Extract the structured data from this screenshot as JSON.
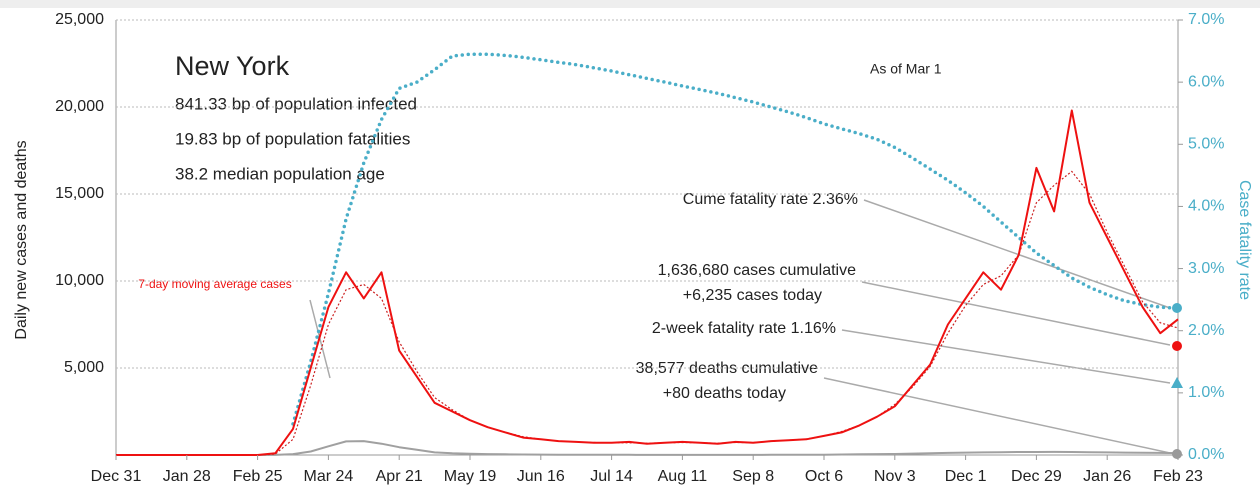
{
  "chart_data": {
    "type": "line",
    "title": "New York",
    "subtitle": [
      "841.33 bp of population infected",
      "19.83 bp of population fatalities",
      "38.2 median population age"
    ],
    "annotations": {
      "as_of": "As of Mar 1",
      "cume_rate": "Cume fatality rate 2.36%",
      "cases_cum": "1,636,680 cases cumulative",
      "cases_today": "+6,235 cases today",
      "two_week_rate": "2-week fatality rate 1.16%",
      "deaths_cum": "38,577 deaths cumulative",
      "deaths_today": "+80 deaths today",
      "avg_label": "7-day moving average cases"
    },
    "ylabel": "Daily new cases and deaths",
    "y2label": "Case fatality rate",
    "x": [
      0,
      7,
      14,
      21,
      28,
      35,
      42,
      49,
      56,
      63,
      70,
      77,
      84,
      91,
      98,
      105,
      112,
      119,
      126,
      133,
      140,
      147,
      154,
      161,
      168,
      175,
      182,
      189,
      196,
      203,
      210,
      217,
      224,
      231,
      238,
      245,
      252,
      259,
      266,
      273,
      280,
      287,
      294,
      301,
      308,
      315,
      322,
      329,
      336,
      343,
      350,
      357,
      364,
      371,
      378,
      385,
      392,
      399,
      406,
      413,
      420
    ],
    "xlim": [
      0,
      420
    ],
    "xticks": [
      {
        "value": 0,
        "label": "Dec 31"
      },
      {
        "value": 28,
        "label": "Jan 28"
      },
      {
        "value": 56,
        "label": "Feb 25"
      },
      {
        "value": 84,
        "label": "Mar 24"
      },
      {
        "value": 112,
        "label": "Apr 21"
      },
      {
        "value": 140,
        "label": "May 19"
      },
      {
        "value": 168,
        "label": "Jun 16"
      },
      {
        "value": 196,
        "label": "Jul 14"
      },
      {
        "value": 224,
        "label": "Aug 11"
      },
      {
        "value": 252,
        "label": "Sep 8"
      },
      {
        "value": 280,
        "label": "Oct 6"
      },
      {
        "value": 308,
        "label": "Nov 3"
      },
      {
        "value": 336,
        "label": "Dec 1"
      },
      {
        "value": 364,
        "label": "Dec 29"
      },
      {
        "value": 392,
        "label": "Jan 26"
      },
      {
        "value": 420,
        "label": "Feb 23"
      }
    ],
    "ylim": [
      0,
      25000
    ],
    "yticks": [
      {
        "value": 5000,
        "label": "5,000"
      },
      {
        "value": 10000,
        "label": "10,000"
      },
      {
        "value": 15000,
        "label": "15,000"
      },
      {
        "value": 20000,
        "label": "20,000"
      },
      {
        "value": 25000,
        "label": "25,000"
      }
    ],
    "y2lim": [
      0,
      7
    ],
    "y2ticks": [
      {
        "value": 0,
        "label": "0.0%"
      },
      {
        "value": 1,
        "label": "1.0%"
      },
      {
        "value": 2,
        "label": "2.0%"
      },
      {
        "value": 3,
        "label": "3.0%"
      },
      {
        "value": 4,
        "label": "4.0%"
      },
      {
        "value": 5,
        "label": "5.0%"
      },
      {
        "value": 6,
        "label": "6.0%"
      },
      {
        "value": 7,
        "label": "7.0%"
      }
    ],
    "grid": true,
    "series": [
      {
        "name": "Daily new cases",
        "color": "#ee1111",
        "style": "solid",
        "values": [
          0,
          0,
          0,
          0,
          0,
          0,
          0,
          0,
          0,
          100,
          1500,
          5000,
          8500,
          10500,
          9000,
          10500,
          6000,
          4500,
          3000,
          2500,
          2000,
          1600,
          1300,
          1000,
          900,
          800,
          750,
          700,
          700,
          750,
          650,
          700,
          750,
          700,
          650,
          750,
          700,
          800,
          850,
          900,
          1100,
          1300,
          1700,
          2200,
          2800,
          4000,
          5200,
          7500,
          9000,
          10500,
          9500,
          11500,
          16500,
          14000,
          19800,
          14500,
          12500,
          10500,
          8500,
          7000,
          7800
        ]
      },
      {
        "name": "7-day moving average cases",
        "color": "#cc2222",
        "style": "dotted",
        "values": [
          0,
          0,
          0,
          0,
          0,
          0,
          0,
          0,
          0,
          50,
          900,
          4000,
          7500,
          9500,
          9800,
          9000,
          6500,
          4800,
          3300,
          2600,
          2000,
          1600,
          1300,
          1050,
          900,
          800,
          750,
          720,
          700,
          700,
          680,
          700,
          720,
          700,
          680,
          720,
          720,
          780,
          850,
          920,
          1100,
          1350,
          1700,
          2200,
          2900,
          3900,
          5100,
          7000,
          8600,
          9800,
          10300,
          11500,
          14500,
          15500,
          16300,
          15000,
          12800,
          10800,
          8800,
          7600,
          7300
        ]
      },
      {
        "name": "Daily deaths",
        "color": "#a0a0a0",
        "style": "solid",
        "values": [
          0,
          0,
          0,
          0,
          0,
          0,
          0,
          0,
          0,
          5,
          50,
          200,
          500,
          780,
          800,
          650,
          450,
          300,
          150,
          100,
          70,
          50,
          40,
          30,
          25,
          20,
          15,
          12,
          10,
          10,
          8,
          8,
          8,
          8,
          8,
          8,
          8,
          10,
          12,
          15,
          20,
          30,
          40,
          50,
          60,
          80,
          100,
          120,
          140,
          150,
          160,
          170,
          170,
          180,
          170,
          160,
          150,
          140,
          130,
          120,
          110
        ]
      },
      {
        "name": "Case fatality rate",
        "color": "#4aaec8",
        "style": "bigdots",
        "axis": "y2",
        "values": [
          null,
          null,
          null,
          null,
          null,
          null,
          null,
          null,
          null,
          null,
          0.5,
          1.5,
          2.6,
          3.8,
          4.7,
          5.4,
          5.9,
          6.0,
          6.2,
          6.42,
          6.45,
          6.45,
          6.43,
          6.4,
          6.36,
          6.32,
          6.28,
          6.23,
          6.18,
          6.12,
          6.06,
          6.0,
          5.94,
          5.88,
          5.82,
          5.75,
          5.68,
          5.6,
          5.52,
          5.43,
          5.33,
          5.25,
          5.17,
          5.08,
          4.95,
          4.78,
          4.6,
          4.42,
          4.22,
          4.0,
          3.75,
          3.5,
          3.25,
          3.05,
          2.85,
          2.7,
          2.58,
          2.48,
          2.42,
          2.38,
          2.36
        ]
      }
    ]
  }
}
